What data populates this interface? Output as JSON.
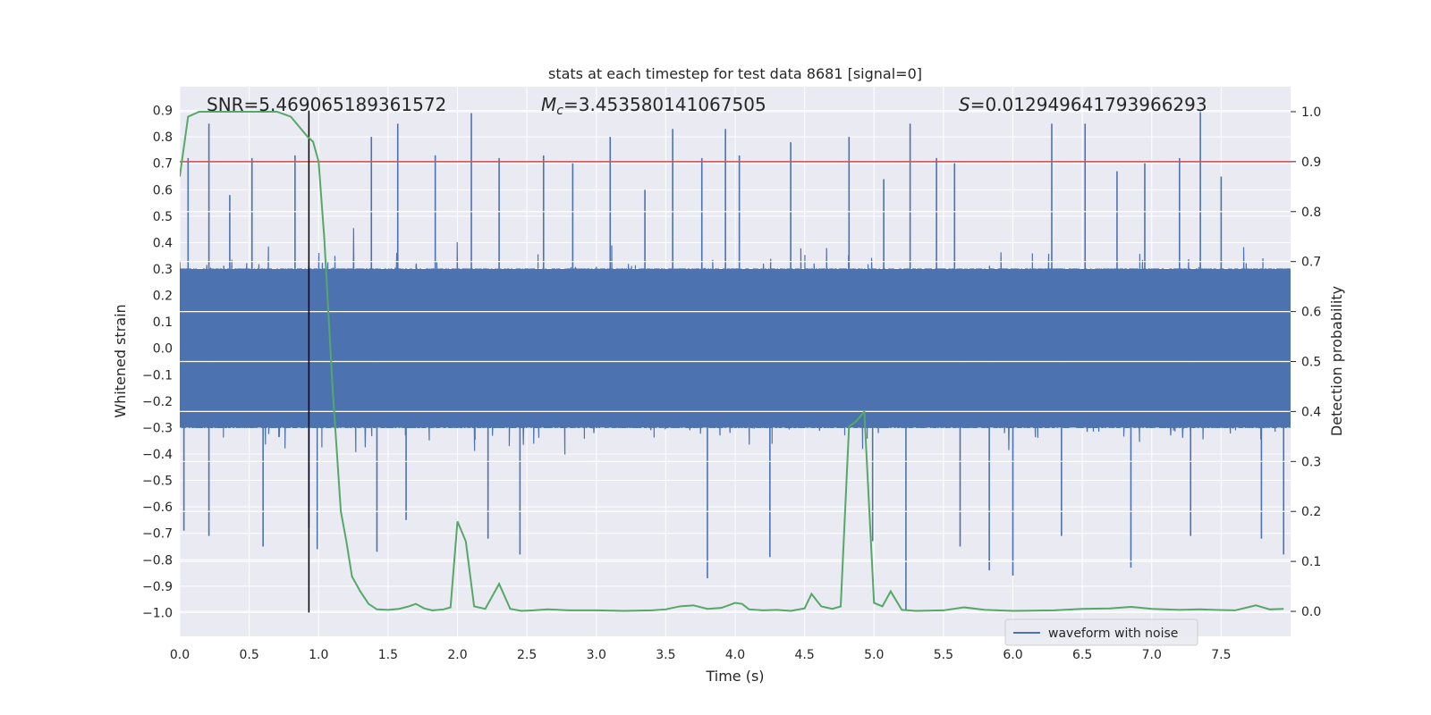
{
  "chart_data": {
    "type": "line",
    "title": "stats at each timestep for test data 8681 [signal=0]",
    "xlabel": "Time (s)",
    "ylabel_left": "Whitened strain",
    "ylabel_right": "Detection probability",
    "xlim": [
      0.0,
      8.0
    ],
    "ylim_left": [
      -1.09,
      0.99
    ],
    "ylim_right": [
      -0.05,
      1.05
    ],
    "x_ticks": [
      0.0,
      0.5,
      1.0,
      1.5,
      2.0,
      2.5,
      3.0,
      3.5,
      4.0,
      4.5,
      5.0,
      5.5,
      6.0,
      6.5,
      7.0,
      7.5
    ],
    "x_tick_labels": [
      "0.0",
      "0.5",
      "1.0",
      "1.5",
      "2.0",
      "2.5",
      "3.0",
      "3.5",
      "4.0",
      "4.5",
      "5.0",
      "5.5",
      "6.0",
      "6.5",
      "7.0",
      "7.5"
    ],
    "y_left_ticks": [
      0.9,
      0.8,
      0.7,
      0.6,
      0.5,
      0.4,
      0.3,
      0.2,
      0.1,
      0.0,
      -0.1,
      -0.2,
      -0.3,
      -0.4,
      -0.5,
      -0.6,
      -0.7,
      -0.8,
      -0.9,
      -1.0
    ],
    "y_left_tick_labels": [
      "0.9",
      "0.8",
      "0.7",
      "0.6",
      "0.5",
      "0.4",
      "0.3",
      "0.2",
      "0.1",
      "0.0",
      "−0.1",
      "−0.2",
      "−0.3",
      "−0.4",
      "−0.5",
      "−0.6",
      "−0.7",
      "−0.8",
      "−0.9",
      "−1.0"
    ],
    "y_right_ticks": [
      1.0,
      0.9,
      0.8,
      0.7,
      0.6,
      0.5,
      0.4,
      0.3,
      0.2,
      0.1,
      0.0
    ],
    "y_right_tick_labels": [
      "1.0",
      "0.9",
      "0.8",
      "0.7",
      "0.6",
      "0.5",
      "0.4",
      "0.3",
      "0.2",
      "0.1",
      "0.0"
    ],
    "annotations": {
      "snr": "SNR=5.469065189361572",
      "mc_symbol": "M",
      "mc_sub": "c",
      "mc_value": "=3.453580141067505",
      "s_symbol": "S",
      "s_value": "=0.012949641793966293"
    },
    "threshold_probability": 0.9,
    "vertical_line_x": 0.93,
    "vertical_line_y_range": [
      -1.0,
      0.9
    ],
    "legend": {
      "label": "waveform with noise",
      "position": "lower-right"
    },
    "colors": {
      "waveform": "#4c72b0",
      "probability": "#55a868",
      "threshold": "#c44e52",
      "marker": "#000000",
      "background": "#eaeaf2",
      "grid": "#ffffff"
    },
    "waveform": {
      "description_series": "waveform with noise",
      "sample_rate_hz": 512,
      "core_envelope": 0.3,
      "noise_seed": 8681
    },
    "waveform_spikes": [
      {
        "x": 0.06,
        "y": 0.72
      },
      {
        "x": 0.21,
        "y": 0.85
      },
      {
        "x": 0.36,
        "y": 0.58
      },
      {
        "x": 0.52,
        "y": 0.72
      },
      {
        "x": 0.6,
        "y": -0.75
      },
      {
        "x": 0.21,
        "y": -0.71
      },
      {
        "x": 0.03,
        "y": -0.69
      },
      {
        "x": 0.83,
        "y": 0.73
      },
      {
        "x": 0.93,
        "y": -0.68
      },
      {
        "x": 0.99,
        "y": -0.76
      },
      {
        "x": 1.38,
        "y": 0.8
      },
      {
        "x": 1.42,
        "y": -0.77
      },
      {
        "x": 1.57,
        "y": 0.85
      },
      {
        "x": 1.63,
        "y": -0.65
      },
      {
        "x": 1.84,
        "y": 0.73
      },
      {
        "x": 2.1,
        "y": 0.89
      },
      {
        "x": 2.22,
        "y": -0.72
      },
      {
        "x": 2.3,
        "y": 0.72
      },
      {
        "x": 2.45,
        "y": -0.78
      },
      {
        "x": 2.62,
        "y": 0.73
      },
      {
        "x": 2.83,
        "y": 0.7
      },
      {
        "x": 3.1,
        "y": 0.8
      },
      {
        "x": 3.35,
        "y": 0.6
      },
      {
        "x": 3.55,
        "y": 0.83
      },
      {
        "x": 3.76,
        "y": 0.72
      },
      {
        "x": 3.8,
        "y": -0.87
      },
      {
        "x": 3.93,
        "y": 0.83
      },
      {
        "x": 4.03,
        "y": 0.73
      },
      {
        "x": 4.25,
        "y": -0.79
      },
      {
        "x": 4.4,
        "y": 0.78
      },
      {
        "x": 4.82,
        "y": 0.8
      },
      {
        "x": 4.99,
        "y": -0.73
      },
      {
        "x": 5.07,
        "y": 0.64
      },
      {
        "x": 5.23,
        "y": -0.99
      },
      {
        "x": 5.26,
        "y": 0.85
      },
      {
        "x": 5.45,
        "y": 0.72
      },
      {
        "x": 5.58,
        "y": 0.7
      },
      {
        "x": 5.62,
        "y": -0.75
      },
      {
        "x": 5.83,
        "y": -0.84
      },
      {
        "x": 6.0,
        "y": -0.86
      },
      {
        "x": 6.28,
        "y": 0.85
      },
      {
        "x": 6.35,
        "y": -0.71
      },
      {
        "x": 6.52,
        "y": 0.85
      },
      {
        "x": 6.75,
        "y": 0.67
      },
      {
        "x": 6.85,
        "y": -0.83
      },
      {
        "x": 6.95,
        "y": 0.7
      },
      {
        "x": 7.2,
        "y": 0.72
      },
      {
        "x": 7.28,
        "y": -0.71
      },
      {
        "x": 7.35,
        "y": 0.9
      },
      {
        "x": 7.5,
        "y": 0.65
      },
      {
        "x": 7.79,
        "y": -0.72
      },
      {
        "x": 7.95,
        "y": -0.78
      }
    ],
    "probability": {
      "x": [
        0.0,
        0.06,
        0.14,
        0.3,
        0.5,
        0.7,
        0.8,
        0.86,
        0.92,
        0.96,
        1.0,
        1.04,
        1.1,
        1.16,
        1.2,
        1.24,
        1.3,
        1.36,
        1.42,
        1.5,
        1.58,
        1.65,
        1.7,
        1.76,
        1.82,
        1.9,
        1.95,
        2.0,
        2.06,
        2.12,
        2.2,
        2.3,
        2.38,
        2.46,
        2.55,
        2.65,
        2.8,
        3.0,
        3.2,
        3.4,
        3.5,
        3.6,
        3.7,
        3.8,
        3.9,
        4.0,
        4.05,
        4.1,
        4.2,
        4.3,
        4.4,
        4.5,
        4.55,
        4.62,
        4.7,
        4.76,
        4.82,
        4.87,
        4.93,
        5.0,
        5.06,
        5.12,
        5.2,
        5.3,
        5.5,
        5.65,
        5.8,
        6.0,
        6.3,
        6.5,
        6.7,
        6.85,
        7.0,
        7.2,
        7.35,
        7.45,
        7.6,
        7.75,
        7.85,
        7.95
      ],
      "y": [
        0.87,
        0.99,
        1.0,
        1.0,
        1.0,
        1.0,
        0.99,
        0.97,
        0.95,
        0.94,
        0.9,
        0.75,
        0.45,
        0.2,
        0.14,
        0.07,
        0.04,
        0.015,
        0.004,
        0.003,
        0.005,
        0.01,
        0.015,
        0.006,
        0.002,
        0.004,
        0.008,
        0.18,
        0.14,
        0.01,
        0.005,
        0.055,
        0.005,
        0.001,
        0.002,
        0.004,
        0.002,
        0.002,
        0.001,
        0.002,
        0.004,
        0.01,
        0.012,
        0.005,
        0.007,
        0.017,
        0.015,
        0.004,
        0.002,
        0.003,
        0.001,
        0.006,
        0.035,
        0.01,
        0.005,
        0.01,
        0.37,
        0.38,
        0.4,
        0.017,
        0.01,
        0.04,
        0.003,
        0.001,
        0.002,
        0.008,
        0.003,
        0.001,
        0.002,
        0.005,
        0.006,
        0.009,
        0.005,
        0.003,
        0.004,
        0.003,
        0.002,
        0.012,
        0.004,
        0.005
      ]
    }
  }
}
